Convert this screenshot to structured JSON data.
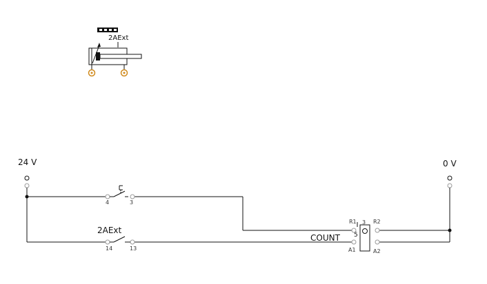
{
  "pneumatic": {
    "cylinder_label": "2AExt"
  },
  "supply": {
    "positive_label": "24 V",
    "negative_label": "0 V"
  },
  "switch_top": {
    "terminal_left": "4",
    "terminal_right": "3"
  },
  "switch_bottom": {
    "label": "2AExt",
    "terminal_left": "14",
    "terminal_right": "13"
  },
  "counter": {
    "label": "COUNT",
    "preset": "5",
    "terminal_r1": "R1",
    "terminal_r2": "R2",
    "terminal_a1": "A1",
    "terminal_a2": "A2",
    "terminal_3": "3"
  },
  "colors": {
    "wire": "#111111",
    "port": "#d08a1c",
    "connector": "#999999"
  }
}
